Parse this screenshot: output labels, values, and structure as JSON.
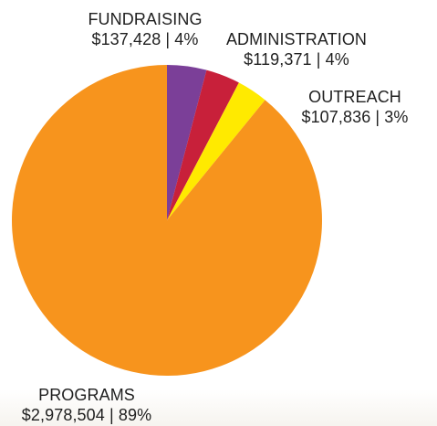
{
  "chart_data": {
    "type": "pie",
    "title": "",
    "start_angle_deg": 0,
    "direction": "clockwise",
    "slices": [
      {
        "name": "FUNDRAISING",
        "value": 137428,
        "percent_label": "4%",
        "value_label": "$137,428 | 4%",
        "color": "#7b3f98"
      },
      {
        "name": "ADMINISTRATION",
        "value": 119371,
        "percent_label": "4%",
        "value_label": "$119,371 | 4%",
        "color": "#c8203a"
      },
      {
        "name": "OUTREACH",
        "value": 107836,
        "percent_label": "3%",
        "value_label": "$107,836 | 3%",
        "color": "#ffea00"
      },
      {
        "name": "PROGRAMS",
        "value": 2978504,
        "percent_label": "89%",
        "value_label": "$2,978,504 | 89%",
        "color": "#f7941d"
      }
    ]
  }
}
